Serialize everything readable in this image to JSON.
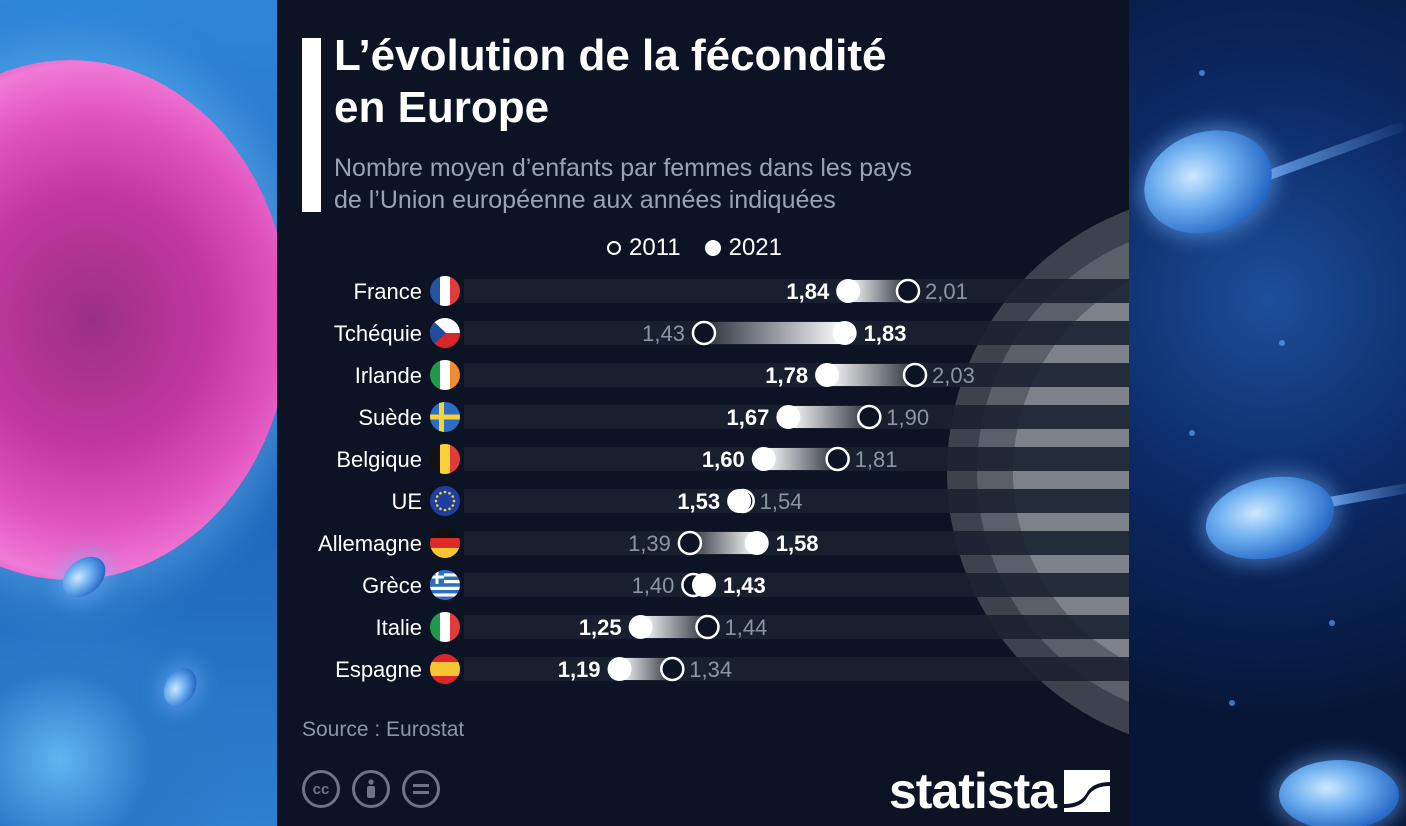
{
  "title": "L’évolution de la fécondité\nen Europe",
  "subtitle": "Nombre moyen d’enfants par femmes dans les pays\nde l’Union européenne aux années indiquées",
  "source": "Source : Eurostat",
  "brand": "statista",
  "colors": {
    "background": "#0b1325",
    "text": "#ffffff",
    "muted": "#8c95a6",
    "row_band": "#1a2232"
  },
  "chart_data": {
    "type": "dumbbell",
    "title": "L’évolution de la fécondité en Europe",
    "series": [
      {
        "name": "2011",
        "marker": "ring"
      },
      {
        "name": "2021",
        "marker": "filled"
      }
    ],
    "categories": [
      "France",
      "Tchéquie",
      "Irlande",
      "Suède",
      "Belgique",
      "UE",
      "Allemagne",
      "Grèce",
      "Italie",
      "Espagne"
    ],
    "flags": [
      "flag-france-icon",
      "flag-czechia-icon",
      "flag-ireland-icon",
      "flag-sweden-icon",
      "flag-belgium-icon",
      "flag-eu-icon",
      "flag-germany-icon",
      "flag-greece-icon",
      "flag-italy-icon",
      "flag-spain-icon"
    ],
    "values_2011": [
      2.01,
      1.43,
      2.03,
      1.9,
      1.81,
      1.54,
      1.39,
      1.4,
      1.44,
      1.34
    ],
    "values_2021": [
      1.84,
      1.83,
      1.78,
      1.67,
      1.6,
      1.53,
      1.58,
      1.43,
      1.25,
      1.19
    ],
    "labels_2011": [
      "2,01",
      "1,43",
      "2,03",
      "1,90",
      "1,81",
      "1,54",
      "1,39",
      "1,40",
      "1,44",
      "1,34"
    ],
    "labels_2021": [
      "1,84",
      "1,83",
      "1,78",
      "1,67",
      "1,60",
      "1,53",
      "1,58",
      "1,43",
      "1,25",
      "1,19"
    ],
    "xlim": [
      0.6,
      2.3
    ],
    "grid": false
  }
}
